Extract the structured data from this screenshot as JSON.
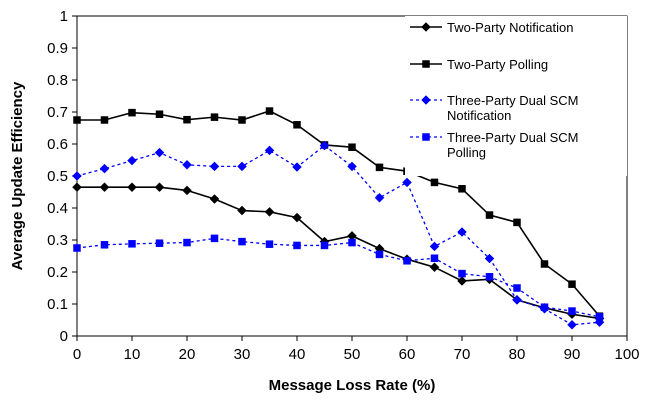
{
  "chart_data": {
    "type": "line",
    "xlabel": "Message Loss Rate (%)",
    "ylabel": "Average Update Efficiency",
    "xlim": [
      0,
      100
    ],
    "ylim": [
      0,
      1
    ],
    "x_ticks": [
      "0",
      "10",
      "20",
      "30",
      "40",
      "50",
      "60",
      "70",
      "80",
      "90",
      "100"
    ],
    "y_ticks": [
      "0",
      "0.1",
      "0.2",
      "0.3",
      "0.4",
      "0.5",
      "0.6",
      "0.7",
      "0.8",
      "0.9",
      "1"
    ],
    "grid": false,
    "legend_position": "top-right",
    "x": [
      0,
      5,
      10,
      15,
      20,
      25,
      30,
      35,
      40,
      45,
      50,
      55,
      60,
      65,
      70,
      75,
      80,
      85,
      90,
      95
    ],
    "series": [
      {
        "name": "Two-Party Notification",
        "color": "#000000",
        "dashed": false,
        "marker": "diamond",
        "values": [
          0.465,
          0.465,
          0.465,
          0.465,
          0.455,
          0.428,
          0.392,
          0.388,
          0.37,
          0.295,
          0.313,
          0.273,
          0.24,
          0.215,
          0.172,
          0.177,
          0.113,
          0.088,
          0.068,
          0.055
        ]
      },
      {
        "name": "Two-Party Polling",
        "color": "#000000",
        "dashed": false,
        "marker": "square",
        "values": [
          0.675,
          0.675,
          0.698,
          0.693,
          0.676,
          0.684,
          0.675,
          0.703,
          0.66,
          0.597,
          0.59,
          0.527,
          0.515,
          0.48,
          0.46,
          0.378,
          0.355,
          0.225,
          0.162,
          0.062
        ]
      },
      {
        "name": "Three-Party Dual SCM Notification",
        "color": "#0000ff",
        "dashed": true,
        "marker": "diamond",
        "values": [
          0.5,
          0.523,
          0.548,
          0.573,
          0.535,
          0.53,
          0.53,
          0.58,
          0.528,
          0.595,
          0.53,
          0.432,
          0.48,
          0.28,
          0.325,
          0.242,
          0.113,
          0.085,
          0.035,
          0.043
        ]
      },
      {
        "name": "Three-Party Dual SCM Polling",
        "color": "#0000ff",
        "dashed": true,
        "marker": "square",
        "values": [
          0.275,
          0.285,
          0.288,
          0.29,
          0.292,
          0.305,
          0.295,
          0.287,
          0.283,
          0.283,
          0.292,
          0.255,
          0.235,
          0.243,
          0.195,
          0.185,
          0.15,
          0.09,
          0.078,
          0.06
        ]
      }
    ]
  }
}
